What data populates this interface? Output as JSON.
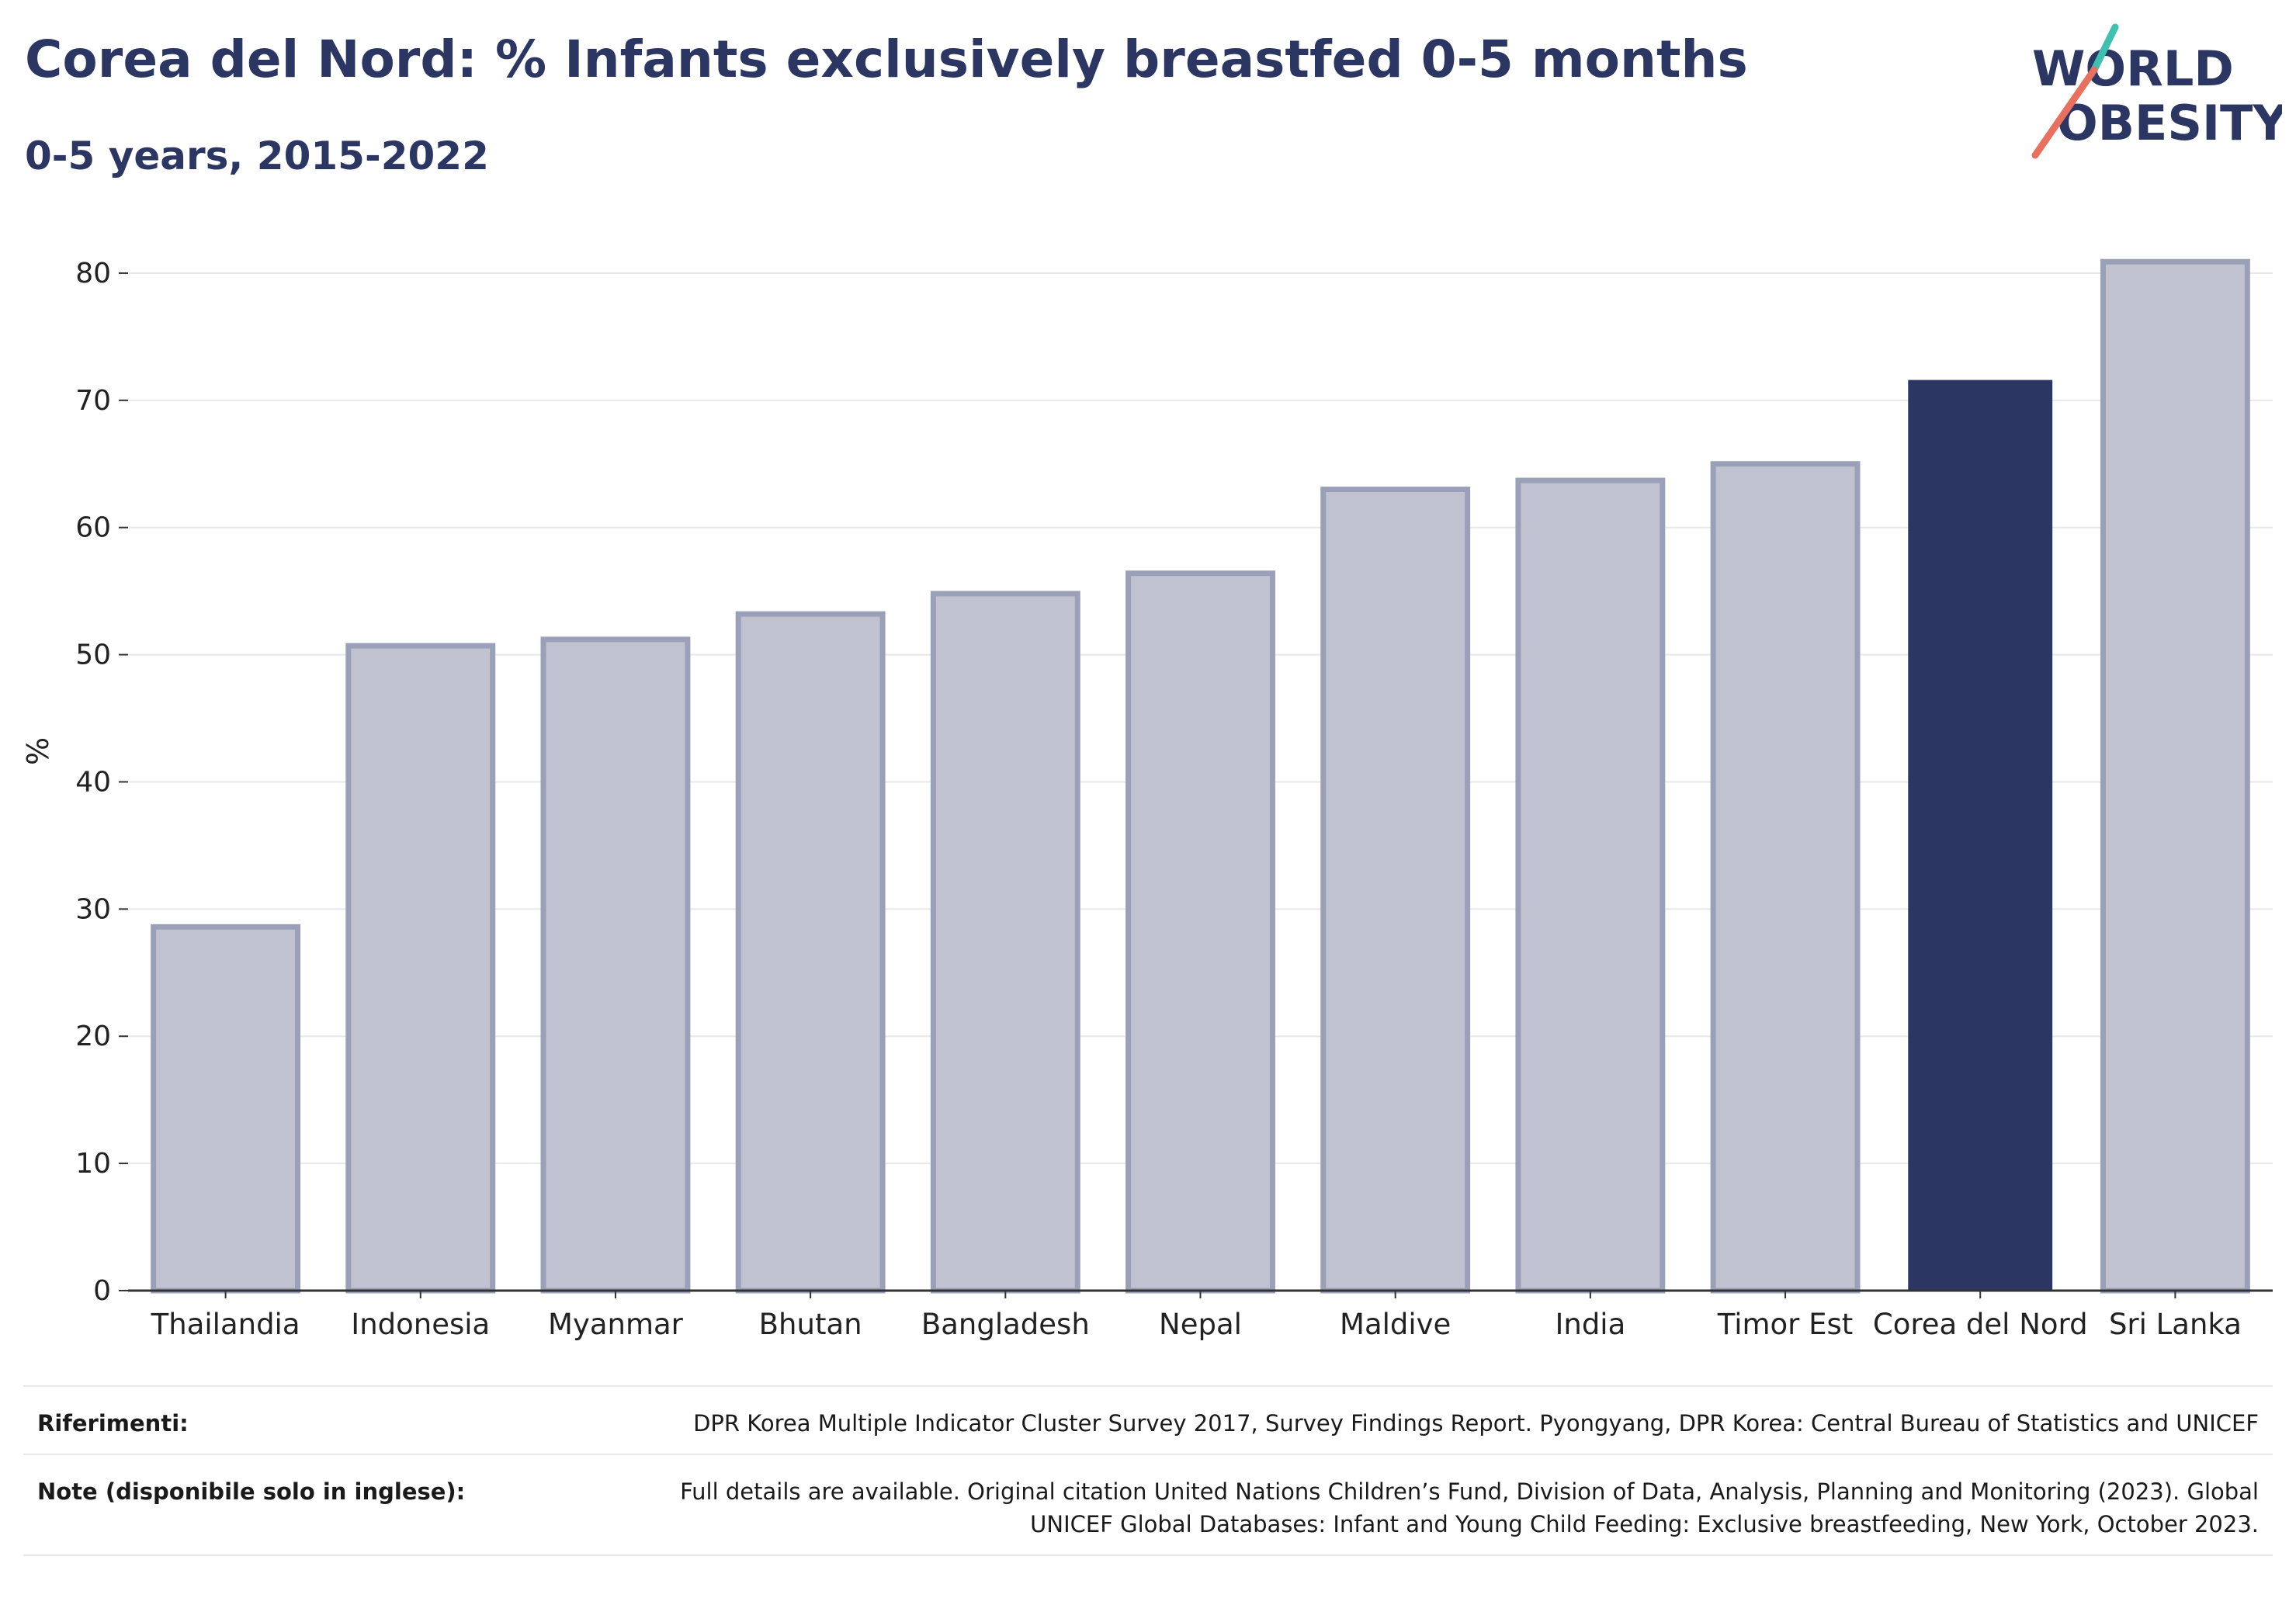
{
  "header": {
    "title": "Corea del Nord: % Infants exclusively breastfed 0-5 months",
    "subtitle": "0-5 years, 2015-2022"
  },
  "logo": {
    "line1": "WORLD",
    "line2": "OBESITY",
    "colors": {
      "text": "#2b3663",
      "slash_top": "#3fc1b0",
      "slash_bottom": "#e8705f"
    }
  },
  "chart_data": {
    "type": "bar",
    "title": "Corea del Nord: % Infants exclusively breastfed 0-5 months",
    "subtitle": "0-5 years, 2015-2022",
    "xlabel": "",
    "ylabel": "%",
    "ylim": [
      0,
      85
    ],
    "yticks": [
      0,
      10,
      20,
      30,
      40,
      50,
      60,
      70,
      80
    ],
    "grid": true,
    "categories": [
      "Thailandia",
      "Indonesia",
      "Myanmar",
      "Bhutan",
      "Bangladesh",
      "Nepal",
      "Maldive",
      "India",
      "Timor Est",
      "Corea del Nord",
      "Sri Lanka"
    ],
    "values": [
      28.6,
      50.7,
      51.2,
      53.2,
      54.8,
      56.4,
      63.0,
      63.7,
      65.0,
      71.6,
      80.9
    ],
    "highlight": "Corea del Nord",
    "colors": {
      "bar": "#c0c3cf",
      "bar_edge": "#9aa0b7",
      "highlight": "#2b3663",
      "grid": "#e8e8ec",
      "axis": "#333333"
    }
  },
  "footer": {
    "references_label": "Riferimenti:",
    "references_text": "DPR Korea Multiple Indicator Cluster Survey 2017, Survey Findings Report. Pyongyang, DPR Korea: Central Bureau of Statistics and UNICEF",
    "notes_label": "Note (disponibile solo in inglese):",
    "notes_text": "Full details are available. Original citation United Nations Children’s Fund, Division of Data, Analysis, Planning and Monitoring (2023). Global UNICEF Global Databases: Infant and Young Child Feeding: Exclusive breastfeeding, New York, October 2023."
  }
}
